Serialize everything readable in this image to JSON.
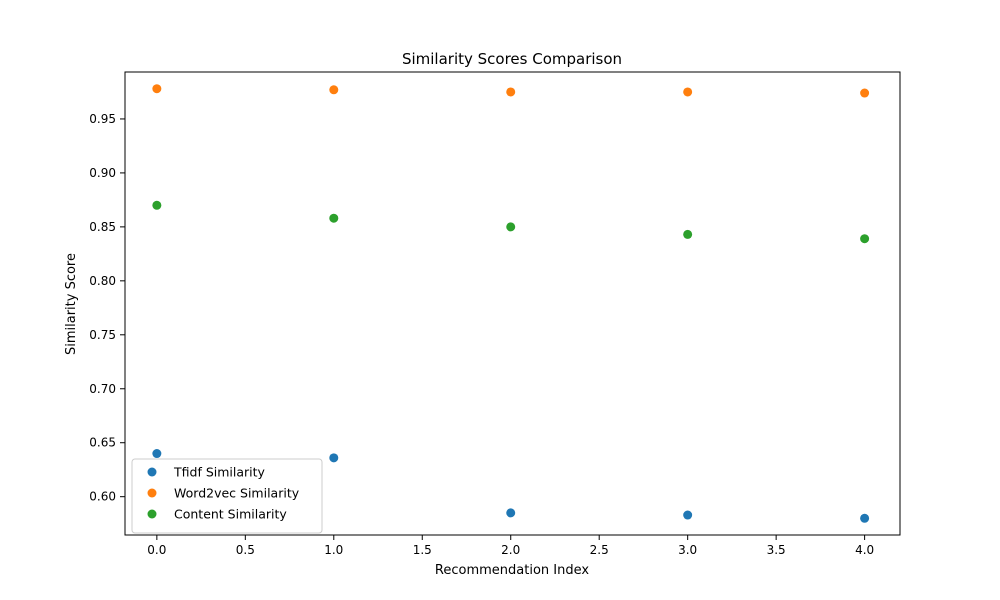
{
  "chart_data": {
    "type": "scatter",
    "title": "Similarity Scores Comparison",
    "xlabel": "Recommendation Index",
    "ylabel": "Similarity Score",
    "xlim": [
      -0.18,
      4.2
    ],
    "ylim": [
      0.5645,
      0.9935
    ],
    "xticks": [
      0.0,
      0.5,
      1.0,
      1.5,
      2.0,
      2.5,
      3.0,
      3.5,
      4.0
    ],
    "xtick_labels": [
      "0.0",
      "0.5",
      "1.0",
      "1.5",
      "2.0",
      "2.5",
      "3.0",
      "3.5",
      "4.0"
    ],
    "yticks": [
      0.6,
      0.65,
      0.7,
      0.75,
      0.8,
      0.85,
      0.9,
      0.95
    ],
    "ytick_labels": [
      "0.60",
      "0.65",
      "0.70",
      "0.75",
      "0.80",
      "0.85",
      "0.90",
      "0.95"
    ],
    "grid": false,
    "legend": "lower-left",
    "x": [
      0,
      1,
      2,
      3,
      4
    ],
    "series": [
      {
        "name": "Tfidf Similarity",
        "color": "#1f77b4",
        "values": [
          0.64,
          0.636,
          0.585,
          0.583,
          0.58
        ]
      },
      {
        "name": "Word2vec Similarity",
        "color": "#ff7f0e",
        "values": [
          0.978,
          0.977,
          0.975,
          0.975,
          0.974
        ]
      },
      {
        "name": "Content Similarity",
        "color": "#2ca02c",
        "values": [
          0.87,
          0.858,
          0.85,
          0.843,
          0.839
        ]
      }
    ]
  }
}
